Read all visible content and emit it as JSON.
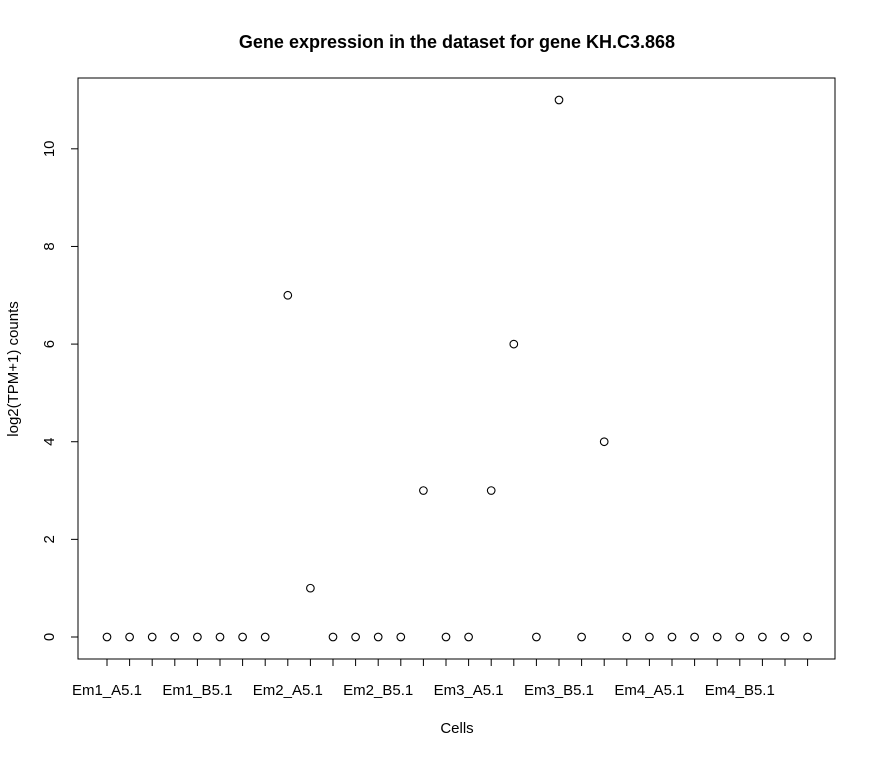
{
  "chart_data": {
    "type": "scatter",
    "title": "Gene expression in the dataset for gene KH.C3.868",
    "xlabel": "Cells",
    "ylabel": "log2(TPM+1) counts",
    "x_tick_labels": [
      "Em1_A5.1",
      "Em1_B5.1",
      "Em2_A5.1",
      "Em2_B5.1",
      "Em3_A5.1",
      "Em3_B5.1",
      "Em4_A5.1",
      "Em4_B5.1"
    ],
    "y_ticks": [
      0,
      2,
      4,
      6,
      8,
      10
    ],
    "ylim": [
      0,
      11
    ],
    "grid": false,
    "marker": "open-circle",
    "n_points": 32,
    "values": [
      0,
      0,
      0,
      0,
      0,
      0,
      0,
      0,
      7,
      1,
      0,
      0,
      0,
      0,
      3,
      0,
      0,
      3,
      6,
      0,
      11,
      0,
      4,
      0,
      0,
      0,
      0,
      0,
      0,
      0,
      0,
      0
    ]
  }
}
